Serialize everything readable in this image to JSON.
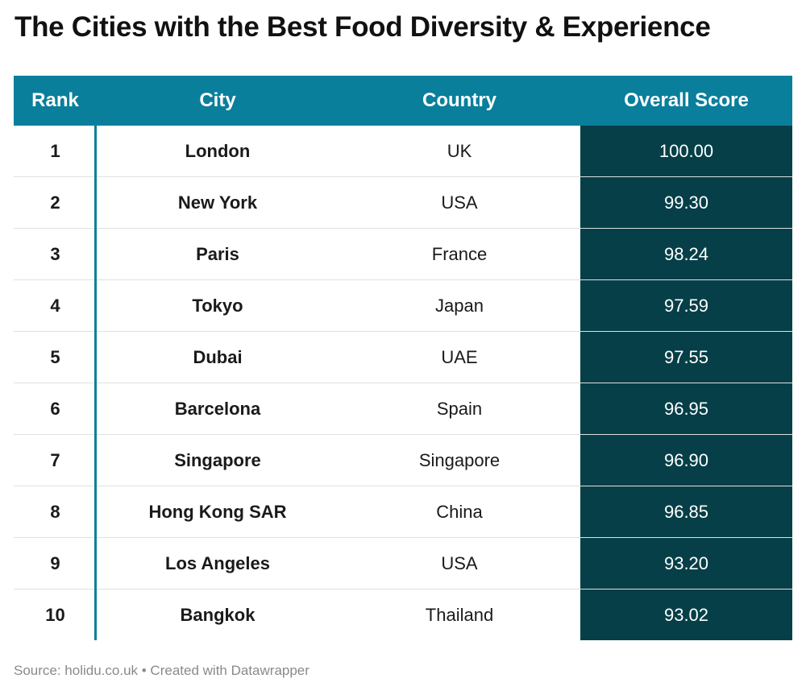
{
  "chart_data": {
    "type": "table",
    "title": "The Cities with the Best Food Diversity & Experience",
    "columns": [
      "Rank",
      "City",
      "Country",
      "Overall Score"
    ],
    "rows": [
      {
        "rank": "1",
        "city": "London",
        "country": "UK",
        "score": "100.00"
      },
      {
        "rank": "2",
        "city": "New York",
        "country": "USA",
        "score": "99.30"
      },
      {
        "rank": "3",
        "city": "Paris",
        "country": "France",
        "score": "98.24"
      },
      {
        "rank": "4",
        "city": "Tokyo",
        "country": "Japan",
        "score": "97.59"
      },
      {
        "rank": "5",
        "city": "Dubai",
        "country": "UAE",
        "score": "97.55"
      },
      {
        "rank": "6",
        "city": "Barcelona",
        "country": "Spain",
        "score": "96.95"
      },
      {
        "rank": "7",
        "city": "Singapore",
        "country": "Singapore",
        "score": "96.90"
      },
      {
        "rank": "8",
        "city": "Hong Kong SAR",
        "country": "China",
        "score": "96.85"
      },
      {
        "rank": "9",
        "city": "Los Angeles",
        "country": "USA",
        "score": "93.20"
      },
      {
        "rank": "10",
        "city": "Bangkok",
        "country": "Thailand",
        "score": "93.02"
      }
    ],
    "source": "Source: holidu.co.uk • Created with Datawrapper",
    "colors": {
      "header": "#0a7f9c",
      "score_bg": "#063f48"
    }
  }
}
